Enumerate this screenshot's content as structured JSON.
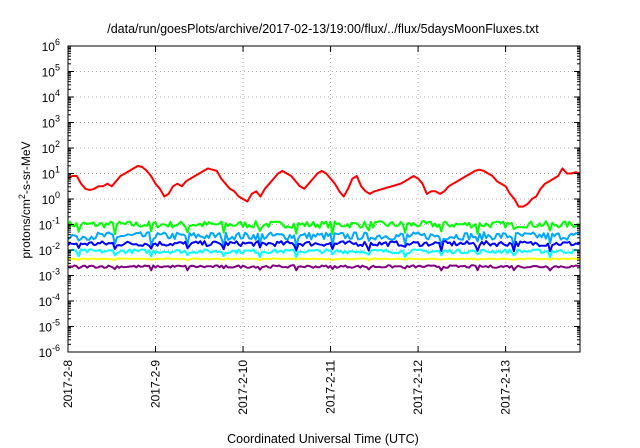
{
  "chart_data": {
    "type": "line",
    "title": "/data/run/goesPlots/archive/2017-02-13/19:00/flux/../flux/5daysMoonFluxes.txt",
    "xlabel": "Coordinated Universal Time (UTC)",
    "ylabel_parts": [
      "protons/cm",
      "2",
      "-s-sr-MeV"
    ],
    "y_scale": "log",
    "ylim_exp": [
      -6,
      6
    ],
    "ytick_labels": [
      {
        "base": "10",
        "exp": "-6"
      },
      {
        "base": "10",
        "exp": "-5"
      },
      {
        "base": "10",
        "exp": "-4"
      },
      {
        "base": "10",
        "exp": "-3"
      },
      {
        "base": "10",
        "exp": "-2"
      },
      {
        "base": "10",
        "exp": "-1"
      },
      {
        "base": "10",
        "exp": "0"
      },
      {
        "base": "10",
        "exp": "1"
      },
      {
        "base": "10",
        "exp": "2"
      },
      {
        "base": "10",
        "exp": "3"
      },
      {
        "base": "10",
        "exp": "4"
      },
      {
        "base": "10",
        "exp": "5"
      },
      {
        "base": "10",
        "exp": "6"
      }
    ],
    "x_ticks": [
      "2017-2-8",
      "2017-2-9",
      "2017-2-10",
      "2017-2-11",
      "2017-2-12",
      "2017-2-13"
    ],
    "x_range_days": [
      0,
      5.85
    ],
    "grid": true,
    "series": [
      {
        "color": "#ff0000",
        "x": [
          0.0,
          0.05,
          0.1,
          0.15,
          0.2,
          0.25,
          0.3,
          0.35,
          0.4,
          0.45,
          0.5,
          0.55,
          0.6,
          0.65,
          0.7,
          0.75,
          0.8,
          0.85,
          0.9,
          0.95,
          1.0,
          1.05,
          1.1,
          1.15,
          1.2,
          1.25,
          1.3,
          1.35,
          1.4,
          1.45,
          1.5,
          1.55,
          1.6,
          1.65,
          1.7,
          1.75,
          1.8,
          1.85,
          1.9,
          1.95,
          2.0,
          2.05,
          2.1,
          2.15,
          2.2,
          2.25,
          2.3,
          2.35,
          2.4,
          2.45,
          2.5,
          2.55,
          2.6,
          2.65,
          2.7,
          2.75,
          2.8,
          2.85,
          2.9,
          2.95,
          3.0,
          3.05,
          3.1,
          3.15,
          3.2,
          3.25,
          3.3,
          3.35,
          3.4,
          3.45,
          3.5,
          3.55,
          3.6,
          3.65,
          3.7,
          3.75,
          3.8,
          3.85,
          3.9,
          3.95,
          4.0,
          4.05,
          4.1,
          4.15,
          4.2,
          4.25,
          4.3,
          4.35,
          4.4,
          4.45,
          4.5,
          4.55,
          4.6,
          4.65,
          4.7,
          4.75,
          4.8,
          4.85,
          4.9,
          4.95,
          5.0,
          5.05,
          5.1,
          5.15,
          5.2,
          5.25,
          5.3,
          5.35,
          5.4,
          5.45,
          5.5,
          5.55,
          5.6,
          5.65,
          5.7,
          5.75,
          5.8,
          5.85
        ],
        "log10_y": [
          0.8,
          0.9,
          0.9,
          0.6,
          0.4,
          0.35,
          0.4,
          0.5,
          0.5,
          0.6,
          0.5,
          0.7,
          0.9,
          1.0,
          1.1,
          1.2,
          1.3,
          1.25,
          1.1,
          0.9,
          0.6,
          0.4,
          0.1,
          0.2,
          0.5,
          0.6,
          0.5,
          0.7,
          0.8,
          0.9,
          1.0,
          1.1,
          1.2,
          1.15,
          1.1,
          0.8,
          0.6,
          0.4,
          0.3,
          0.1,
          0.0,
          -0.1,
          0.2,
          0.3,
          0.1,
          0.4,
          0.6,
          0.8,
          1.0,
          1.1,
          1.0,
          0.9,
          0.7,
          0.5,
          0.4,
          0.6,
          0.8,
          1.0,
          1.1,
          1.0,
          0.8,
          0.6,
          0.3,
          0.1,
          0.4,
          0.8,
          0.9,
          0.5,
          0.3,
          0.2,
          0.3,
          0.35,
          0.4,
          0.45,
          0.5,
          0.55,
          0.6,
          0.7,
          0.8,
          0.9,
          0.8,
          0.6,
          0.2,
          0.3,
          0.3,
          0.2,
          0.3,
          0.5,
          0.6,
          0.7,
          0.8,
          0.9,
          1.0,
          1.1,
          1.15,
          1.1,
          1.0,
          0.9,
          0.7,
          0.6,
          0.5,
          0.2,
          0.0,
          -0.3,
          -0.3,
          -0.2,
          0.0,
          0.1,
          0.4,
          0.6,
          0.7,
          0.8,
          0.9,
          1.2,
          1.0,
          1.0,
          1.05,
          1.0
        ]
      },
      {
        "color": "#00ff00",
        "x": [
          0,
          5.85
        ],
        "log10_y_level": -1.0,
        "log10_y_jitter": 0.13
      },
      {
        "color": "#00a8ff",
        "x": [
          0,
          5.85
        ],
        "log10_y_level": -1.45,
        "log10_y_jitter": 0.15
      },
      {
        "color": "#0000ff",
        "x": [
          0,
          5.85
        ],
        "log10_y_level": -1.75,
        "log10_y_jitter": 0.1
      },
      {
        "color": "#00ffff",
        "x": [
          0,
          5.85
        ],
        "log10_y_level": -2.05,
        "log10_y_jitter": 0.08
      },
      {
        "color": "#ffff00",
        "x": [
          0,
          5.85
        ],
        "log10_y_level": -2.35,
        "log10_y_jitter": 0.02
      },
      {
        "color": "#800080",
        "x": [
          0,
          5.85
        ],
        "log10_y_level": -2.65,
        "log10_y_jitter": 0.05
      }
    ]
  }
}
